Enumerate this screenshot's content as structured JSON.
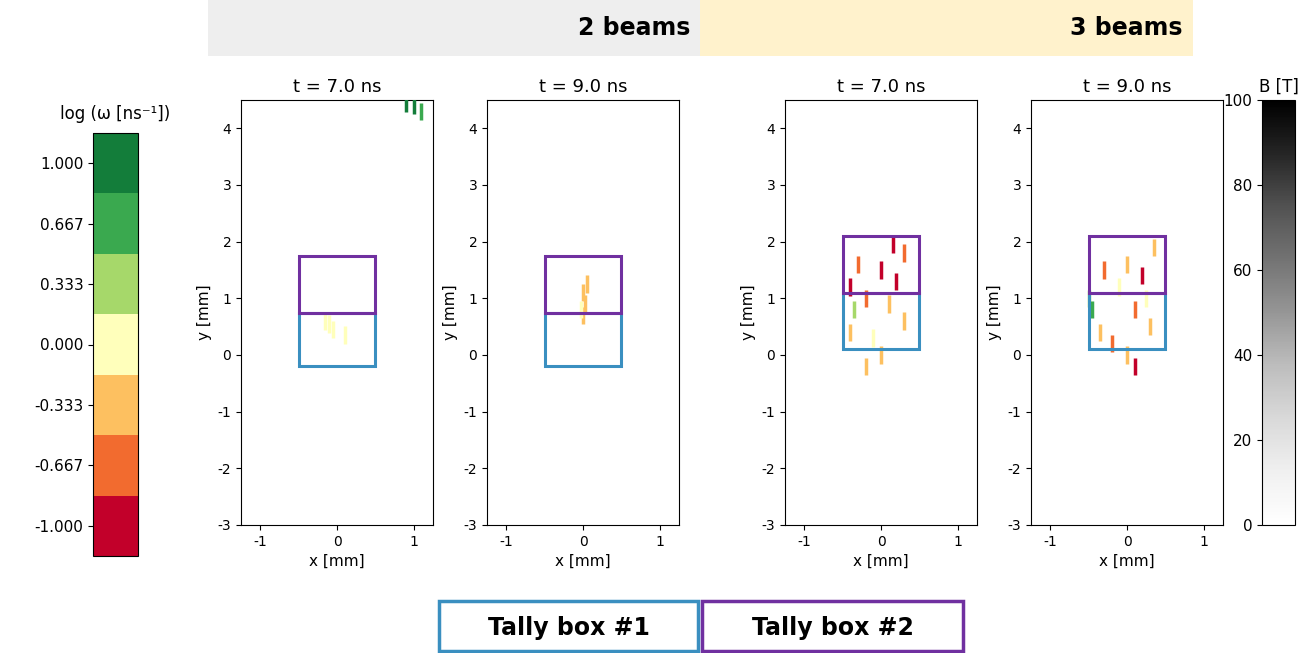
{
  "header": [
    {
      "text": "2 beams",
      "color": "#eeeeee"
    },
    {
      "text": "3 beams",
      "color": "#fff2cc"
    }
  ],
  "chart_data": [
    {
      "type": "image",
      "title": "t = 7.0 ns",
      "xlabel": "x [mm]",
      "ylabel": "y [mm]",
      "xlim": [
        -1.25,
        1.25
      ],
      "ylim": [
        -3,
        4.5
      ],
      "xticks": [
        -1,
        0,
        1
      ],
      "yticks": [
        -3,
        -2,
        -1,
        0,
        1,
        2,
        3,
        4
      ],
      "boxes": [
        {
          "x": [
            -0.5,
            0.5
          ],
          "y": [
            -0.2,
            0.75
          ]
        },
        {
          "x": [
            -0.5,
            0.5
          ],
          "y": [
            0.75,
            1.75
          ]
        }
      ],
      "marker": "|",
      "tracers": {
        "x": [
          -0.1,
          -0.05,
          0.1,
          -0.15,
          1.0,
          1.1,
          0.9
        ],
        "y": [
          0.55,
          0.45,
          0.35,
          0.6,
          4.4,
          4.3,
          4.45
        ],
        "log_omega": [
          0.0,
          0.1,
          -0.1,
          0.0,
          0.9,
          0.8,
          0.9
        ]
      }
    },
    {
      "type": "image",
      "title": "t = 9.0 ns",
      "xlabel": "x [mm]",
      "ylabel": "y [mm]",
      "xlim": [
        -1.25,
        1.25
      ],
      "ylim": [
        -3,
        4.5
      ],
      "xticks": [
        -1,
        0,
        1
      ],
      "yticks": [
        -3,
        -2,
        -1,
        0,
        1,
        2,
        3,
        4
      ],
      "boxes": [
        {
          "x": [
            -0.5,
            0.5
          ],
          "y": [
            -0.2,
            0.75
          ]
        },
        {
          "x": [
            -0.5,
            0.5
          ],
          "y": [
            0.75,
            1.75
          ]
        }
      ],
      "marker": "|",
      "tracers": {
        "x": [
          0.0,
          0.02,
          0.0,
          0.05,
          -0.03
        ],
        "y": [
          0.7,
          0.9,
          1.1,
          1.25,
          0.8
        ],
        "log_omega": [
          -0.4,
          -0.3,
          -0.5,
          -0.2,
          0.0
        ]
      }
    },
    {
      "type": "image",
      "title": "t = 7.0 ns",
      "xlabel": "x [mm]",
      "ylabel": "y [mm]",
      "xlim": [
        -1.25,
        1.25
      ],
      "ylim": [
        -3,
        4.5
      ],
      "xticks": [
        -1,
        0,
        1
      ],
      "yticks": [
        -3,
        -2,
        -1,
        0,
        1,
        2,
        3,
        4
      ],
      "boxes": [
        {
          "x": [
            -0.5,
            0.5
          ],
          "y": [
            0.1,
            1.1
          ]
        },
        {
          "x": [
            -0.5,
            0.5
          ],
          "y": [
            1.1,
            2.1
          ]
        }
      ],
      "marker": "|",
      "tracers": {
        "x": [
          -0.4,
          -0.3,
          -0.2,
          0.0,
          0.1,
          0.2,
          0.3,
          -0.1,
          0.0,
          -0.4,
          0.3,
          -0.2,
          0.15,
          -0.35
        ],
        "y": [
          1.2,
          1.6,
          1.0,
          1.5,
          0.9,
          1.3,
          0.6,
          0.3,
          0.0,
          0.4,
          1.8,
          -0.2,
          1.95,
          0.8
        ],
        "log_omega": [
          -1.0,
          -0.8,
          -0.6,
          -1.0,
          -0.4,
          -0.9,
          -0.5,
          0.0,
          -0.4,
          -0.3,
          -0.7,
          -0.5,
          -0.9,
          0.2
        ]
      }
    },
    {
      "type": "image",
      "title": "t = 9.0 ns",
      "xlabel": "x [mm]",
      "ylabel": "y [mm]",
      "xlim": [
        -1.25,
        1.25
      ],
      "ylim": [
        -3,
        4.5
      ],
      "xticks": [
        -1,
        0,
        1
      ],
      "yticks": [
        -3,
        -2,
        -1,
        0,
        1,
        2,
        3,
        4
      ],
      "boxes": [
        {
          "x": [
            -0.5,
            0.5
          ],
          "y": [
            0.1,
            1.1
          ]
        },
        {
          "x": [
            -0.5,
            0.5
          ],
          "y": [
            1.1,
            2.1
          ]
        }
      ],
      "marker": "|",
      "tracers": {
        "x": [
          -0.5,
          -0.45,
          -0.3,
          -0.1,
          0.0,
          0.1,
          0.2,
          0.3,
          -0.2,
          0.0,
          0.1,
          0.35,
          -0.35,
          0.25
        ],
        "y": [
          1.0,
          0.8,
          1.5,
          1.2,
          1.6,
          0.8,
          1.4,
          0.5,
          0.2,
          0.0,
          -0.2,
          1.9,
          0.4,
          1.0
        ],
        "log_omega": [
          0.4,
          0.6,
          -0.8,
          0.0,
          -0.3,
          -0.6,
          -1.0,
          -0.4,
          -0.7,
          -0.5,
          -1.0,
          -0.5,
          -0.2,
          0.1
        ]
      }
    }
  ],
  "omega_colorbar": {
    "label": "log (ω [ns⁻¹])",
    "lim": [
      -1.1667,
      1.1667
    ],
    "colors": [
      "#c2002a",
      "#f26b2f",
      "#fdc060",
      "#ffffbb",
      "#a6d86a",
      "#3aa94f",
      "#137d3a"
    ],
    "ticks": [
      {
        "value": -1.0,
        "label": "-1.000"
      },
      {
        "value": -0.667,
        "label": "-0.667"
      },
      {
        "value": -0.333,
        "label": "-0.333"
      },
      {
        "value": 0.0,
        "label": "0.000"
      },
      {
        "value": 0.333,
        "label": "0.333"
      },
      {
        "value": 0.667,
        "label": "0.667"
      },
      {
        "value": 1.0,
        "label": "1.000"
      }
    ]
  },
  "b_colorbar": {
    "label": "B [T]",
    "lim": [
      0,
      100
    ],
    "ticks": [
      0,
      20,
      40,
      60,
      80,
      100
    ]
  },
  "tally_boxes": [
    {
      "name": "Tally box #1",
      "color": "#3a8fc0"
    },
    {
      "name": "Tally box #2",
      "color": "#7030a0"
    }
  ]
}
